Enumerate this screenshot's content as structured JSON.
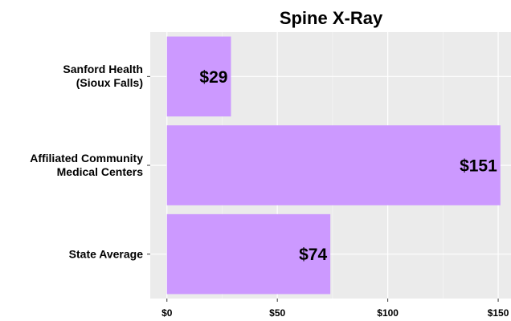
{
  "chart_data": {
    "type": "bar",
    "orientation": "horizontal",
    "title": "Spine X-Ray",
    "categories": [
      "Sanford Health\n(Sioux Falls)",
      "Affiliated Community\nMedical Centers",
      "State Average"
    ],
    "values": [
      29,
      151,
      74
    ],
    "value_labels": [
      "$29",
      "$151",
      "$74"
    ],
    "color": "#cc99ff",
    "xlim": [
      -7.55,
      155.8
    ],
    "xticks": [
      {
        "value": 0,
        "label": "$0"
      },
      {
        "value": 50,
        "label": "$50"
      },
      {
        "value": 100,
        "label": "$100"
      },
      {
        "value": 150,
        "label": "$150"
      }
    ],
    "minor_xticks": [
      25,
      75,
      125
    ],
    "grid": true
  }
}
